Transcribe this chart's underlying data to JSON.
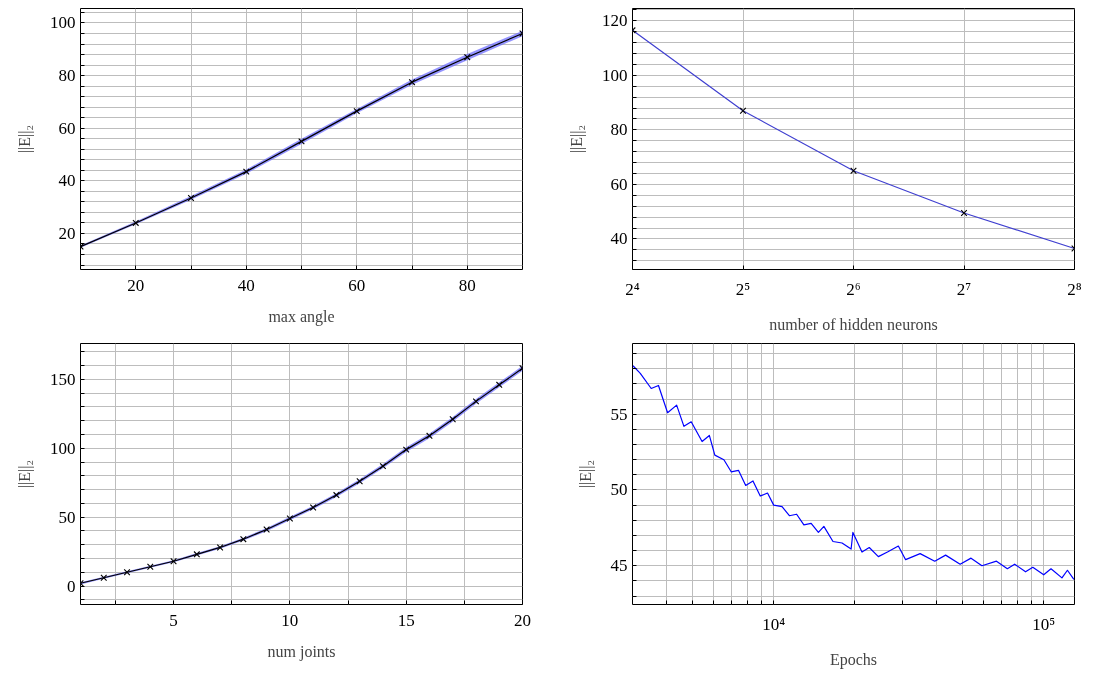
{
  "chart_data": [
    {
      "type": "line",
      "xlabel": "max angle",
      "ylabel": "||E||₂",
      "x": [
        10,
        20,
        30,
        40,
        50,
        60,
        70,
        80,
        90
      ],
      "xlim": [
        10,
        90
      ],
      "ylim": [
        6.3,
        105.5
      ],
      "xticks": [
        20,
        {
          "value": 30,
          "label": null
        },
        40,
        {
          "value": 50,
          "label": null
        },
        60,
        {
          "value": 70,
          "label": null
        },
        80
      ],
      "yticks": [
        {
          "value": 8,
          "label": null
        },
        {
          "value": 12,
          "label": null
        },
        {
          "value": 16,
          "label": null
        },
        20,
        {
          "value": 24,
          "label": null
        },
        {
          "value": 28,
          "label": null
        },
        {
          "value": 32,
          "label": null
        },
        {
          "value": 36,
          "label": null
        },
        40,
        {
          "value": 44,
          "label": null
        },
        {
          "value": 48,
          "label": null
        },
        {
          "value": 52,
          "label": null
        },
        {
          "value": 56,
          "label": null
        },
        60,
        {
          "value": 64,
          "label": null
        },
        {
          "value": 68,
          "label": null
        },
        {
          "value": 72,
          "label": null
        },
        {
          "value": 76,
          "label": null
        },
        80,
        {
          "value": 84,
          "label": null
        },
        {
          "value": 88,
          "label": null
        },
        {
          "value": 92,
          "label": null
        },
        {
          "value": 96,
          "label": null
        },
        100,
        {
          "value": 104,
          "label": null
        }
      ],
      "grid": true,
      "marker": "cross",
      "line_style": "solid",
      "series": [
        {
          "color": "#000000",
          "values": [
            15,
            24,
            33.5,
            43.5,
            55,
            66.5,
            77.5,
            87,
            96
          ],
          "lower": [
            14.6,
            23.5,
            32.8,
            42.7,
            54,
            65.7,
            76.5,
            85.8,
            95
          ],
          "upper": [
            15.4,
            24.5,
            34.2,
            44.3,
            56,
            67.3,
            78.5,
            88.2,
            97
          ]
        }
      ]
    },
    {
      "type": "line",
      "xlabel": "number of hidden neurons",
      "ylabel": "||E||₂",
      "x": [
        16,
        32,
        64,
        128,
        256
      ],
      "log": "x",
      "xlim": [
        16,
        256
      ],
      "ylim": [
        28.8,
        124.5
      ],
      "xticks": [
        {
          "value": 16,
          "label": "2⁴"
        },
        {
          "value": 32,
          "label": "2⁵"
        },
        {
          "value": 64,
          "label": "2⁶"
        },
        {
          "value": 128,
          "label": "2⁷"
        },
        {
          "value": 256,
          "label": "2⁸"
        }
      ],
      "yticks": [
        {
          "value": 32,
          "label": null
        },
        {
          "value": 36,
          "label": null
        },
        40,
        {
          "value": 44,
          "label": null
        },
        {
          "value": 48,
          "label": null
        },
        {
          "value": 52,
          "label": null
        },
        {
          "value": 56,
          "label": null
        },
        60,
        {
          "value": 64,
          "label": null
        },
        {
          "value": 68,
          "label": null
        },
        {
          "value": 72,
          "label": null
        },
        {
          "value": 76,
          "label": null
        },
        80,
        {
          "value": 84,
          "label": null
        },
        {
          "value": 88,
          "label": null
        },
        {
          "value": 92,
          "label": null
        },
        {
          "value": 96,
          "label": null
        },
        100,
        {
          "value": 104,
          "label": null
        },
        {
          "value": 108,
          "label": null
        },
        {
          "value": 112,
          "label": null
        },
        {
          "value": 116,
          "label": null
        },
        120,
        {
          "value": 124,
          "label": null
        }
      ],
      "grid": true,
      "marker": "cross",
      "line_style": "solid",
      "series": [
        {
          "color": "#3f3fd0",
          "values": [
            116.5,
            87,
            65,
            49.5,
            36.5
          ]
        }
      ]
    },
    {
      "type": "line",
      "xlabel": "num joints",
      "ylabel": "||E||₂",
      "x": [
        1,
        2,
        3,
        4,
        5,
        6,
        7,
        8,
        9,
        10,
        11,
        12,
        13,
        14,
        15,
        16,
        17,
        18,
        19,
        20
      ],
      "xlim": [
        1,
        20
      ],
      "ylim": [
        -13.4,
        176
      ],
      "xticks": [
        {
          "value": 2.5,
          "label": null
        },
        5,
        {
          "value": 7.5,
          "label": null
        },
        10,
        {
          "value": 12.5,
          "label": null
        },
        15,
        {
          "value": 17.5,
          "label": null
        },
        20
      ],
      "yticks": [
        {
          "value": -10,
          "label": null
        },
        0,
        {
          "value": 10,
          "label": null
        },
        {
          "value": 20,
          "label": null
        },
        {
          "value": 30,
          "label": null
        },
        {
          "value": 40,
          "label": null
        },
        50,
        {
          "value": 60,
          "label": null
        },
        {
          "value": 70,
          "label": null
        },
        {
          "value": 80,
          "label": null
        },
        {
          "value": 90,
          "label": null
        },
        100,
        {
          "value": 110,
          "label": null
        },
        {
          "value": 120,
          "label": null
        },
        {
          "value": 130,
          "label": null
        },
        {
          "value": 140,
          "label": null
        },
        150,
        {
          "value": 160,
          "label": null
        },
        {
          "value": 170,
          "label": null
        }
      ],
      "grid": true,
      "marker": "cross",
      "line_style": "solid",
      "series": [
        {
          "color": "#000000",
          "values": [
            2,
            6,
            10,
            14,
            18,
            23,
            28,
            34,
            41,
            49,
            57,
            66,
            76,
            87,
            99,
            109,
            121,
            134,
            146,
            158
          ],
          "lower": [
            1.2,
            5.2,
            9.2,
            13.2,
            17.2,
            22.1,
            27.1,
            33,
            39.8,
            47.8,
            55.8,
            64.7,
            74.6,
            85.5,
            97.3,
            107.3,
            119.3,
            132.2,
            144.2,
            156.2
          ],
          "upper": [
            2.8,
            6.8,
            10.8,
            14.8,
            18.8,
            23.9,
            28.9,
            35,
            42.2,
            50.2,
            58.2,
            67.3,
            77.4,
            88.5,
            100.7,
            110.7,
            122.7,
            135.8,
            147.8,
            159.8
          ]
        }
      ]
    },
    {
      "type": "line",
      "xlabel": "Epochs",
      "ylabel": "||E||₂",
      "log": "x",
      "xlim": [
        3000,
        130000
      ],
      "ylim": [
        42.44,
        59.67
      ],
      "x": [
        3013,
        3206,
        3519,
        3744,
        4046,
        4371,
        4651,
        4949,
        5430,
        5777,
        6053,
        6540,
        6960,
        7405,
        7877,
        8380,
        8916,
        9487,
        10000,
        10740,
        11430,
        12160,
        12935,
        13760,
        14640,
        15340,
        16580,
        17910,
        19350,
        19650,
        21230,
        22590,
        24410,
        26380,
        28950,
        30800,
        34860,
        39480,
        43310,
        49030,
        53800,
        59040,
        66830,
        73340,
        78040,
        85640,
        91110,
        100000,
        106400,
        116800,
        122400,
        129300
      ],
      "xticks": [
        {
          "value": 4000,
          "label": null
        },
        {
          "value": 5000,
          "label": null
        },
        {
          "value": 6000,
          "label": null
        },
        {
          "value": 7000,
          "label": null
        },
        {
          "value": 8000,
          "label": null
        },
        {
          "value": 9000,
          "label": null
        },
        {
          "value": 10000,
          "label": "10⁴"
        },
        {
          "value": 20000,
          "label": null
        },
        {
          "value": 30000,
          "label": null
        },
        {
          "value": 40000,
          "label": null
        },
        {
          "value": 50000,
          "label": null
        },
        {
          "value": 60000,
          "label": null
        },
        {
          "value": 70000,
          "label": null
        },
        {
          "value": 80000,
          "label": null
        },
        {
          "value": 90000,
          "label": null
        },
        {
          "value": 100000,
          "label": "10⁵"
        }
      ],
      "yticks": [
        {
          "value": 43,
          "label": null
        },
        {
          "value": 44,
          "label": null
        },
        45,
        {
          "value": 46,
          "label": null
        },
        {
          "value": 47,
          "label": null
        },
        {
          "value": 48,
          "label": null
        },
        {
          "value": 49,
          "label": null
        },
        50,
        {
          "value": 51,
          "label": null
        },
        {
          "value": 52,
          "label": null
        },
        {
          "value": 53,
          "label": null
        },
        {
          "value": 54,
          "label": null
        },
        55,
        {
          "value": 56,
          "label": null
        },
        {
          "value": 57,
          "label": null
        },
        {
          "value": 58,
          "label": null
        },
        {
          "value": 59,
          "label": null
        }
      ],
      "grid": true,
      "marker": "none",
      "line_style": "solid",
      "series": [
        {
          "color": "#0000ff",
          "values": [
            58.2,
            57.7,
            56.7,
            56.9,
            55.1,
            55.6,
            54.2,
            54.5,
            53.2,
            53.6,
            52.3,
            52.0,
            51.2,
            51.3,
            50.3,
            50.6,
            49.6,
            49.8,
            49.0,
            48.9,
            48.3,
            48.4,
            47.7,
            47.8,
            47.2,
            47.6,
            46.6,
            46.5,
            46.1,
            47.2,
            45.9,
            46.2,
            45.6,
            45.9,
            46.3,
            45.4,
            45.8,
            45.3,
            45.7,
            45.1,
            45.5,
            45.0,
            45.3,
            44.8,
            45.1,
            44.6,
            44.9,
            44.4,
            44.8,
            44.2,
            44.7,
            44.1
          ]
        }
      ]
    }
  ]
}
